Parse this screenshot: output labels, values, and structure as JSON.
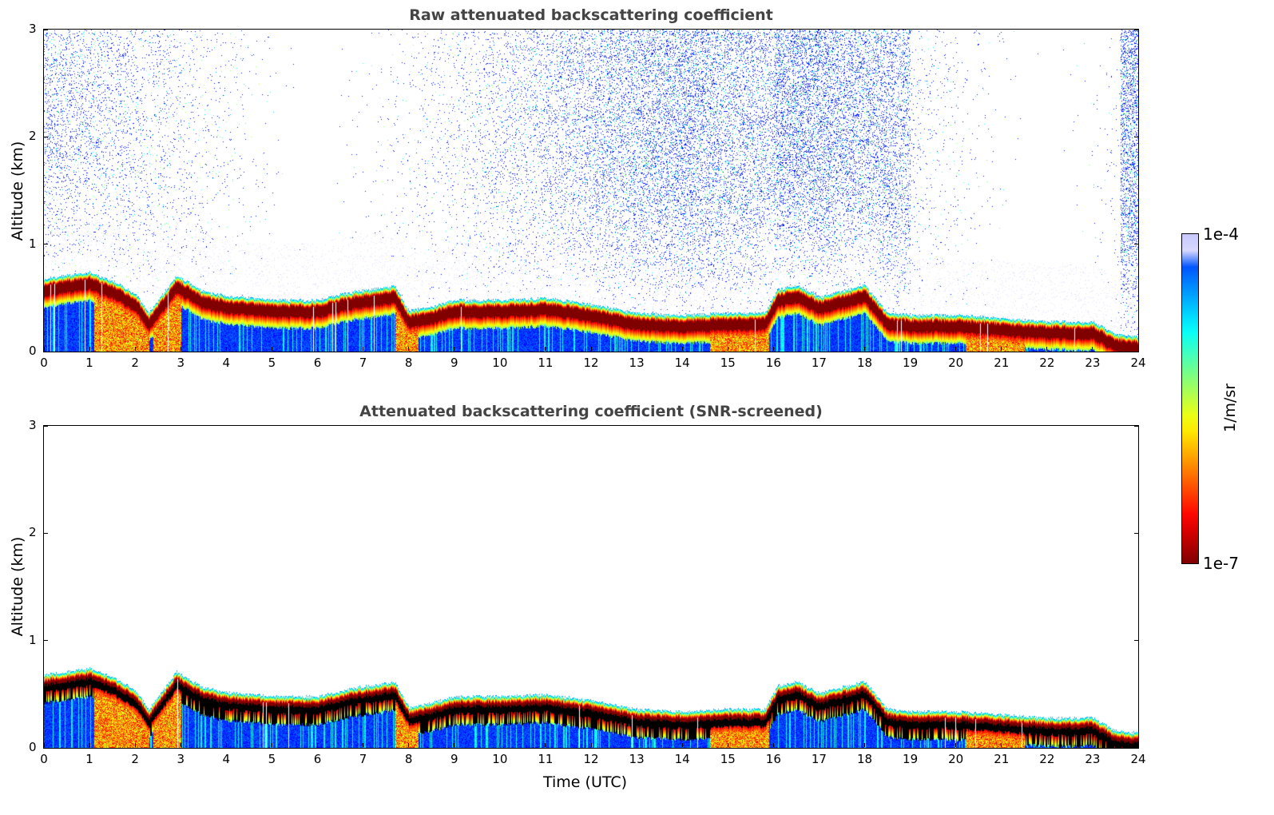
{
  "chart_data": [
    {
      "type": "heatmap",
      "title": "Raw attenuated backscattering coefficient",
      "xlabel": "",
      "ylabel": "Altitude (km)",
      "xlim": [
        0,
        24
      ],
      "ylim": [
        0,
        3
      ],
      "xticks": [
        "0",
        "1",
        "2",
        "3",
        "4",
        "5",
        "6",
        "7",
        "8",
        "9",
        "10",
        "11",
        "12",
        "13",
        "14",
        "15",
        "16",
        "17",
        "18",
        "19",
        "20",
        "21",
        "22",
        "23",
        "24"
      ],
      "yticks": [
        "0",
        "1",
        "2",
        "3"
      ],
      "screened": false
    },
    {
      "type": "heatmap",
      "title": "Attenuated backscattering coefficient (SNR-screened)",
      "xlabel": "Time (UTC)",
      "ylabel": "Altitude (km)",
      "xlim": [
        0,
        24
      ],
      "ylim": [
        0,
        3
      ],
      "xticks": [
        "0",
        "1",
        "2",
        "3",
        "4",
        "5",
        "6",
        "7",
        "8",
        "9",
        "10",
        "11",
        "12",
        "13",
        "14",
        "15",
        "16",
        "17",
        "18",
        "19",
        "20",
        "21",
        "22",
        "23",
        "24"
      ],
      "yticks": [
        "0",
        "1",
        "2",
        "3"
      ],
      "screened": true
    }
  ],
  "layer_top_km": {
    "time": [
      0,
      1,
      1.5,
      2,
      2.3,
      2.9,
      3.5,
      4,
      5,
      6,
      6.8,
      7.7,
      8,
      8.5,
      9,
      10,
      11,
      12,
      13,
      14,
      15,
      15.8,
      16.1,
      16.5,
      17,
      18,
      18.5,
      19,
      20,
      21,
      22,
      23,
      23.5,
      24
    ],
    "height": [
      0.62,
      0.68,
      0.6,
      0.48,
      0.3,
      0.65,
      0.5,
      0.46,
      0.42,
      0.42,
      0.5,
      0.55,
      0.32,
      0.36,
      0.42,
      0.42,
      0.44,
      0.38,
      0.3,
      0.28,
      0.3,
      0.3,
      0.52,
      0.56,
      0.45,
      0.56,
      0.3,
      0.28,
      0.28,
      0.25,
      0.22,
      0.22,
      0.1,
      0.08
    ]
  },
  "colorbar": {
    "max_label": "1e-4",
    "min_label": "1e-7",
    "label": "1/m/sr",
    "range": [
      1e-07,
      0.0001
    ],
    "scale": "log",
    "colormap": "jet"
  }
}
